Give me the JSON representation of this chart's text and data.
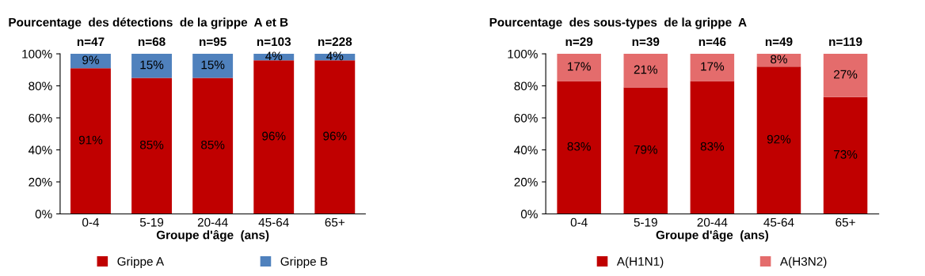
{
  "chart_data": [
    {
      "type": "bar",
      "stacked": true,
      "title": "Pourcentage  des détections  de la grippe  A et B",
      "xlabel": "Groupe d'âge  (ans)",
      "categories": [
        "0-4",
        "5-19",
        "20-44",
        "45-64",
        "65+"
      ],
      "series": [
        {
          "name": "Grippe A",
          "color": "#c00000",
          "values": [
            91,
            85,
            85,
            96,
            96
          ],
          "value_labels": [
            "91%",
            "85%",
            "85%",
            "96%",
            "96%"
          ]
        },
        {
          "name": "Grippe B",
          "color": "#4f81bd",
          "values": [
            9,
            15,
            15,
            4,
            4
          ],
          "value_labels": [
            "9%",
            "15%",
            "15%",
            "4%",
            "4%"
          ]
        }
      ],
      "annotations": [
        {
          "text": "n=47",
          "x": "0-4",
          "y": 100
        },
        {
          "text": "n=68",
          "x": "5-19",
          "y": 100
        },
        {
          "text": "n=95",
          "x": "20-44",
          "y": 100
        },
        {
          "text": "n=103",
          "x": "45-64",
          "y": 100
        },
        {
          "text": "n=228",
          "x": "65+",
          "y": 100
        }
      ],
      "ylim": [
        0,
        100
      ],
      "yticks": [
        {
          "value": 0,
          "label": "0%"
        },
        {
          "value": 20,
          "label": "20%"
        },
        {
          "value": 40,
          "label": "40%"
        },
        {
          "value": 60,
          "label": "60%"
        },
        {
          "value": 80,
          "label": "80%"
        },
        {
          "value": 100,
          "label": "100%"
        }
      ],
      "grid": false,
      "legend": "bottom"
    },
    {
      "type": "bar",
      "stacked": true,
      "title": "Pourcentage  des sous-types  de la grippe  A",
      "xlabel": "Groupe d'âge  (ans)",
      "categories": [
        "0-4",
        "5-19",
        "20-44",
        "45-64",
        "65+"
      ],
      "series": [
        {
          "name": "A(H1N1)",
          "color": "#c00000",
          "values": [
            83,
            79,
            83,
            92,
            73
          ],
          "value_labels": [
            "83%",
            "79%",
            "83%",
            "92%",
            "73%"
          ]
        },
        {
          "name": "A(H3N2)",
          "color": "#e46c6c",
          "values": [
            17,
            21,
            17,
            8,
            27
          ],
          "value_labels": [
            "17%",
            "21%",
            "17%",
            "8%",
            "27%"
          ]
        }
      ],
      "annotations": [
        {
          "text": "n=29",
          "x": "0-4",
          "y": 100
        },
        {
          "text": "n=39",
          "x": "5-19",
          "y": 100
        },
        {
          "text": "n=46",
          "x": "20-44",
          "y": 100
        },
        {
          "text": "n=49",
          "x": "45-64",
          "y": 100
        },
        {
          "text": "n=119",
          "x": "65+",
          "y": 100
        }
      ],
      "ylim": [
        0,
        100
      ],
      "yticks": [
        {
          "value": 0,
          "label": "0%"
        },
        {
          "value": 20,
          "label": "20%"
        },
        {
          "value": 40,
          "label": "40%"
        },
        {
          "value": 60,
          "label": "60%"
        },
        {
          "value": 80,
          "label": "80%"
        },
        {
          "value": 100,
          "label": "100%"
        }
      ],
      "grid": false,
      "legend": "bottom"
    }
  ]
}
